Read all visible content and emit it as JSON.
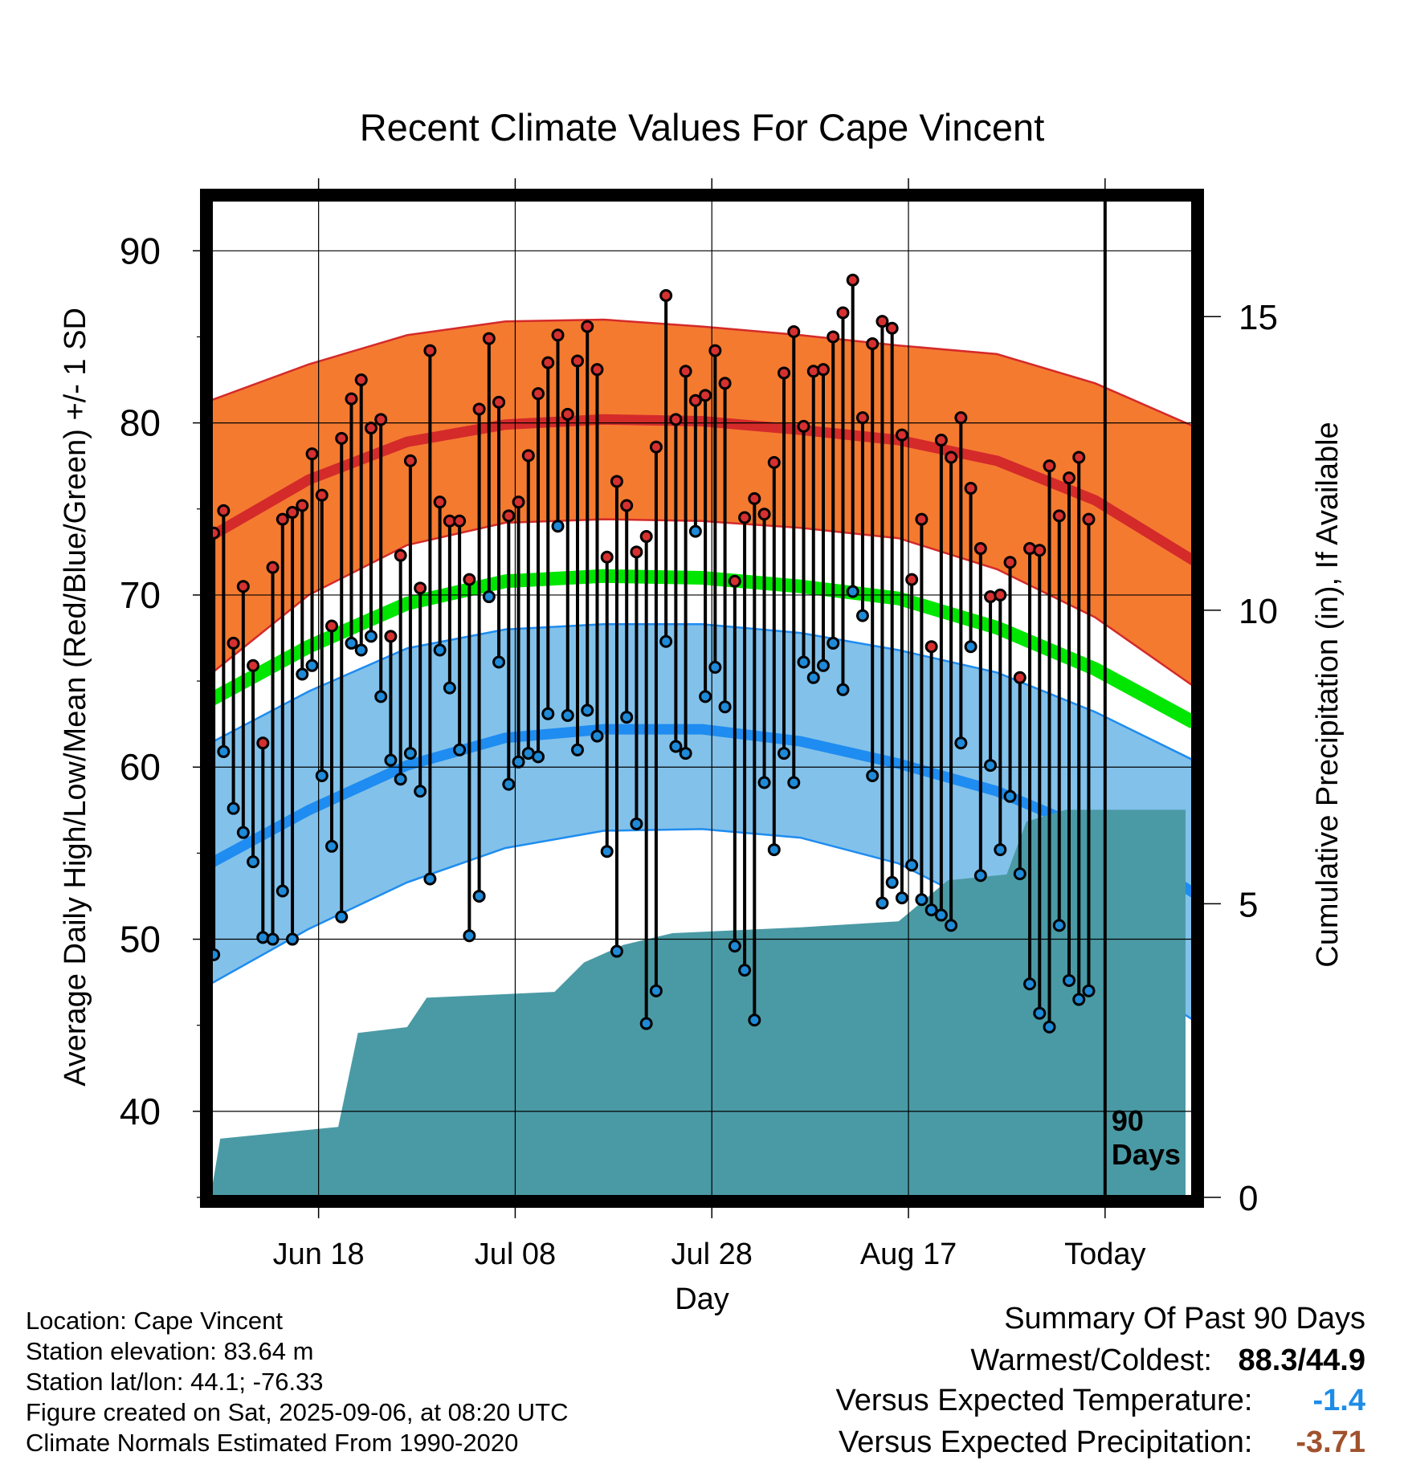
{
  "chart_data": {
    "type": "line",
    "title": "Recent Climate Values For Cape Vincent",
    "xlabel": "Day",
    "ylabel": "Average Daily High/Low/Mean (Red/Blue/Green) +/- 1 SD",
    "y2label": "Cumulative Precipitation (in), If Available",
    "ylim": [
      35,
      93
    ],
    "y_ticks": [
      "40",
      "50",
      "60",
      "70",
      "80",
      "90"
    ],
    "y2lim": [
      0,
      17
    ],
    "y2_ticks": [
      "0",
      "5",
      "10",
      "15"
    ],
    "x_ticks": [
      "Jun 18",
      "Jul 08",
      "Jul 28",
      "Aug 17",
      "Today"
    ],
    "x_start": "2025-06-07",
    "x_end": "2025-09-15",
    "today": "2025-09-06",
    "today_label_line1": "90",
    "today_label_line2": "Days",
    "colors": {
      "high_band": "#f47a30",
      "high_line": "#d42a2a",
      "low_band": "#82c1ea",
      "low_line": "#1e8cf0",
      "mean_line": "#00e600",
      "precip": "#4a9aa5",
      "high_dot": "#d63030",
      "low_dot": "#1e8ad8"
    },
    "normals": {
      "dates": [
        "2025-06-07",
        "2025-06-17",
        "2025-06-27",
        "2025-07-07",
        "2025-07-17",
        "2025-07-27",
        "2025-08-06",
        "2025-08-16",
        "2025-08-26",
        "2025-09-05",
        "2025-09-15"
      ],
      "high_mean": [
        73.4,
        76.7,
        78.9,
        79.9,
        80.2,
        80.1,
        79.6,
        79.0,
        77.8,
        75.5,
        72.0
      ],
      "high_upper": [
        81.3,
        83.4,
        85.1,
        85.9,
        86.0,
        85.6,
        85.1,
        84.5,
        84.0,
        82.3,
        79.8
      ],
      "high_lower": [
        65.4,
        70.0,
        72.9,
        74.2,
        74.4,
        74.3,
        73.9,
        73.3,
        71.5,
        68.7,
        64.7
      ],
      "mean": [
        63.9,
        67.0,
        69.5,
        70.8,
        71.1,
        71.0,
        70.5,
        69.8,
        68.1,
        65.7,
        62.6
      ],
      "low_mean": [
        54.4,
        57.5,
        60.1,
        61.7,
        62.2,
        62.2,
        61.5,
        60.2,
        58.6,
        56.2,
        52.7
      ],
      "low_upper": [
        61.4,
        64.4,
        66.9,
        68.0,
        68.3,
        68.3,
        67.8,
        66.8,
        65.5,
        63.2,
        60.4
      ],
      "low_lower": [
        47.4,
        50.6,
        53.3,
        55.3,
        56.3,
        56.4,
        55.9,
        54.4,
        51.5,
        48.9,
        45.3
      ]
    },
    "series": [
      {
        "name": "High",
        "values": [
          73.6,
          74.9,
          67.2,
          70.5,
          65.9,
          61.4,
          71.6,
          74.4,
          74.8,
          75.2,
          78.2,
          75.8,
          68.2,
          79.1,
          81.4,
          82.5,
          79.7,
          80.2,
          67.6,
          72.3,
          77.8,
          70.4,
          84.2,
          75.4,
          74.3,
          74.3,
          70.9,
          80.8,
          84.9,
          81.2,
          74.6,
          75.4,
          78.1,
          81.7,
          83.5,
          85.1,
          80.5,
          83.6,
          85.6,
          83.1,
          72.2,
          76.6,
          75.2,
          72.5,
          73.4,
          78.6,
          87.4,
          80.2,
          83.0,
          81.3,
          81.6,
          84.2,
          82.3,
          70.8,
          74.5,
          75.6,
          74.7,
          77.7,
          82.9,
          85.3,
          79.8,
          83.0,
          83.1,
          85.0,
          86.4,
          88.3,
          80.3,
          84.6,
          85.9,
          85.5,
          79.3,
          70.9,
          74.4,
          67.0,
          79.0,
          78.0,
          80.3,
          76.2,
          72.7,
          69.9,
          70.0,
          71.9,
          65.2,
          72.7,
          72.6,
          77.5,
          74.6,
          76.8,
          78.0,
          74.4
        ]
      },
      {
        "name": "Low",
        "values": [
          49.1,
          60.9,
          57.6,
          56.2,
          54.5,
          50.1,
          50.0,
          52.8,
          50.0,
          65.4,
          65.9,
          59.5,
          55.4,
          51.3,
          67.2,
          66.8,
          67.6,
          64.1,
          60.4,
          59.3,
          60.8,
          58.6,
          53.5,
          66.8,
          64.6,
          61.0,
          50.2,
          52.5,
          69.9,
          66.1,
          59.0,
          60.3,
          60.8,
          60.6,
          63.1,
          74.0,
          63.0,
          61.0,
          63.3,
          61.8,
          55.1,
          49.3,
          62.9,
          56.7,
          45.1,
          47.0,
          67.3,
          61.2,
          60.8,
          73.7,
          64.1,
          65.8,
          63.5,
          49.6,
          48.2,
          45.3,
          59.1,
          55.2,
          60.8,
          59.1,
          66.1,
          65.2,
          65.9,
          67.2,
          64.5,
          70.2,
          68.8,
          59.5,
          52.1,
          53.3,
          52.4,
          54.3,
          52.3,
          51.7,
          51.4,
          50.8,
          61.4,
          67.0,
          53.7,
          60.1,
          55.2,
          58.3,
          53.8,
          47.4,
          45.7,
          44.9,
          50.8,
          47.6,
          46.5,
          47.0
        ]
      },
      {
        "name": "Cumulative Precipitation",
        "steps": [
          [
            0,
            0
          ],
          [
            1,
            1.0
          ],
          [
            13,
            1.2
          ],
          [
            15,
            2.8
          ],
          [
            20,
            2.9
          ],
          [
            22,
            3.4
          ],
          [
            35,
            3.5
          ],
          [
            38,
            4.0
          ],
          [
            42,
            4.3
          ],
          [
            47,
            4.5
          ],
          [
            60,
            4.6
          ],
          [
            70,
            4.7
          ],
          [
            75,
            5.4
          ],
          [
            81,
            5.5
          ],
          [
            83,
            6.4
          ],
          [
            87,
            6.6
          ],
          [
            94,
            6.6
          ]
        ]
      }
    ]
  },
  "footer": {
    "location": "Location: Cape Vincent",
    "elevation": "Station elevation: 83.64 m",
    "latlon": "Station lat/lon: 44.1; -76.33",
    "created": "Figure created on Sat, 2025-09-06, at 08:20 UTC",
    "normals": "Climate Normals Estimated From 1990-2020"
  },
  "summary": {
    "heading": "Summary Of Past 90 Days",
    "warmest_coldest_label": "Warmest/Coldest:",
    "warmest_coldest_value": "88.3/44.9",
    "temp_label": "Versus Expected Temperature:",
    "temp_value": "-1.4",
    "temp_color": "#1e8ce6",
    "precip_label": "Versus Expected Precipitation:",
    "precip_value": "-3.71",
    "precip_color": "#a0522d"
  }
}
